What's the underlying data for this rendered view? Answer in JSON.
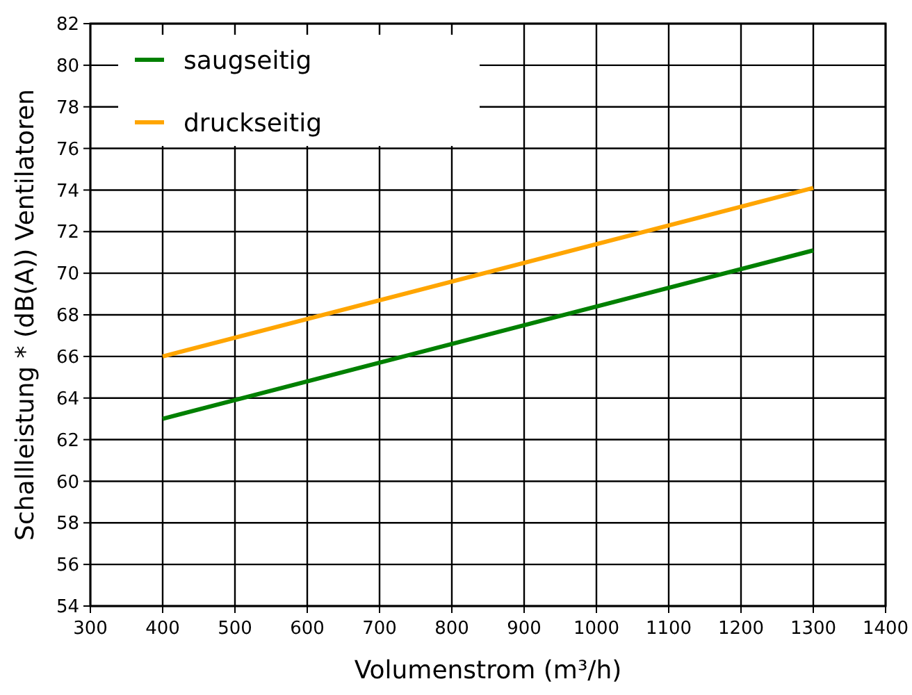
{
  "chart_data": {
    "type": "line",
    "xlabel": "Volumenstrom (m³/h)",
    "ylabel": "Schallleistung * (dB(A)) Ventilatoren",
    "x": [
      400,
      1300
    ],
    "series": [
      {
        "name": "saugseitig",
        "color": "#008000",
        "values": [
          63,
          71.1
        ]
      },
      {
        "name": "druckseitig",
        "color": "#ffa500",
        "values": [
          66,
          74.1
        ]
      }
    ],
    "xlim": [
      300,
      1400
    ],
    "xticks": [
      300,
      400,
      500,
      600,
      700,
      800,
      900,
      1000,
      1100,
      1200,
      1300,
      1400
    ],
    "ylim": [
      54,
      82
    ],
    "yticks": [
      54,
      56,
      58,
      60,
      62,
      64,
      66,
      68,
      70,
      72,
      74,
      76,
      78,
      80,
      82
    ],
    "grid": true,
    "legend": "top left",
    "marker": "none",
    "line_style": "solid"
  }
}
